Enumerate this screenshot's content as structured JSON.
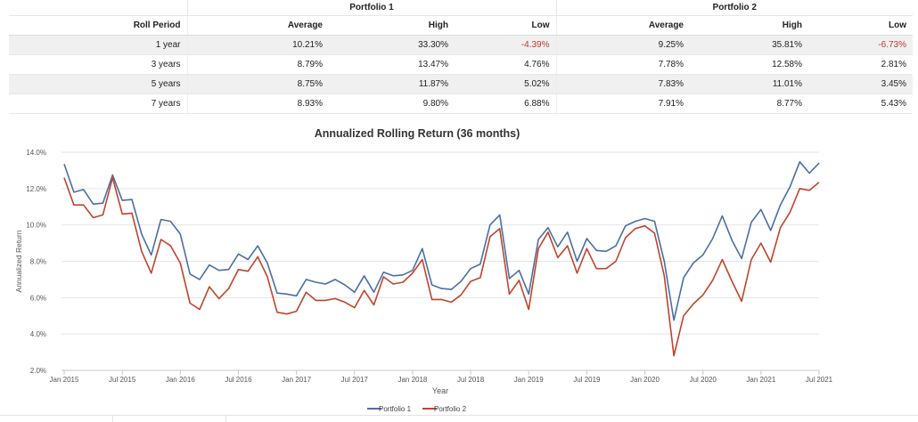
{
  "table": {
    "groups": [
      "Portfolio 1",
      "Portfolio 2"
    ],
    "headers": [
      "Roll Period",
      "Average",
      "High",
      "Low",
      "Average",
      "High",
      "Low"
    ],
    "rows": [
      {
        "period": "1 year",
        "p1": [
          "10.21%",
          "33.30%",
          "-4.39%"
        ],
        "p2": [
          "9.25%",
          "35.81%",
          "-6.73%"
        ]
      },
      {
        "period": "3 years",
        "p1": [
          "8.79%",
          "13.47%",
          "4.76%"
        ],
        "p2": [
          "7.78%",
          "12.58%",
          "2.81%"
        ]
      },
      {
        "period": "5 years",
        "p1": [
          "8.75%",
          "11.87%",
          "5.02%"
        ],
        "p2": [
          "7.83%",
          "11.01%",
          "3.45%"
        ]
      },
      {
        "period": "7 years",
        "p1": [
          "8.93%",
          "9.80%",
          "6.88%"
        ],
        "p2": [
          "7.91%",
          "8.77%",
          "5.43%"
        ]
      }
    ],
    "negative_color": "#c0392b"
  },
  "chart_data": {
    "type": "line",
    "title": "Annualized Rolling Return (36 months)",
    "xlabel": "Year",
    "ylabel": "Annualized Return",
    "x_ticks": [
      "Jan 2015",
      "Jul 2015",
      "Jan 2016",
      "Jul 2016",
      "Jan 2017",
      "Jul 2017",
      "Jan 2018",
      "Jul 2018",
      "Jan 2019",
      "Jul 2019",
      "Jan 2020",
      "Jul 2020",
      "Jan 2021",
      "Jul 2021"
    ],
    "y_ticks": [
      "2.0%",
      "4.0%",
      "6.0%",
      "8.0%",
      "10.0%",
      "12.0%",
      "14.0%"
    ],
    "ylim": [
      2,
      14
    ],
    "grid": true,
    "legend_position": "bottom",
    "series": [
      {
        "name": "Portfolio 1",
        "color": "#4a6fa5",
        "values": [
          13.35,
          11.8,
          11.95,
          11.15,
          11.2,
          12.75,
          11.35,
          11.4,
          9.5,
          8.35,
          10.3,
          10.2,
          9.5,
          7.3,
          7.0,
          7.8,
          7.5,
          7.55,
          8.4,
          8.1,
          8.85,
          7.9,
          6.25,
          6.2,
          6.1,
          7.0,
          6.85,
          6.75,
          7.0,
          6.7,
          6.3,
          7.2,
          6.3,
          7.4,
          7.2,
          7.25,
          7.5,
          8.7,
          6.7,
          6.5,
          6.45,
          6.9,
          7.6,
          7.85,
          10.0,
          10.55,
          7.05,
          7.5,
          6.2,
          9.2,
          9.85,
          8.8,
          9.6,
          8.0,
          9.25,
          8.6,
          8.55,
          8.85,
          9.95,
          10.2,
          10.35,
          10.2,
          8.0,
          4.76,
          7.1,
          7.9,
          8.35,
          9.25,
          10.5,
          9.15,
          8.15,
          10.15,
          10.85,
          9.7,
          11.1,
          12.1,
          13.47,
          12.85,
          13.4
        ]
      },
      {
        "name": "Portfolio 2",
        "color": "#c0442c",
        "values": [
          12.6,
          11.1,
          11.1,
          10.4,
          10.55,
          12.6,
          10.6,
          10.65,
          8.55,
          7.35,
          9.2,
          8.85,
          7.9,
          5.7,
          5.35,
          6.6,
          5.95,
          6.5,
          7.55,
          7.45,
          8.25,
          7.15,
          5.2,
          5.1,
          5.25,
          6.3,
          5.85,
          5.85,
          5.95,
          5.75,
          5.45,
          6.4,
          5.6,
          7.15,
          6.75,
          6.85,
          7.35,
          8.1,
          5.9,
          5.9,
          5.75,
          6.15,
          6.9,
          7.1,
          9.35,
          9.8,
          6.2,
          6.95,
          5.35,
          8.7,
          9.6,
          8.2,
          8.85,
          7.35,
          8.7,
          7.6,
          7.6,
          8.0,
          9.3,
          9.8,
          9.95,
          9.55,
          7.2,
          2.81,
          5.0,
          5.65,
          6.15,
          6.95,
          8.1,
          6.9,
          5.8,
          8.1,
          9.0,
          7.95,
          9.85,
          10.7,
          12.0,
          11.9,
          12.35
        ]
      }
    ]
  }
}
